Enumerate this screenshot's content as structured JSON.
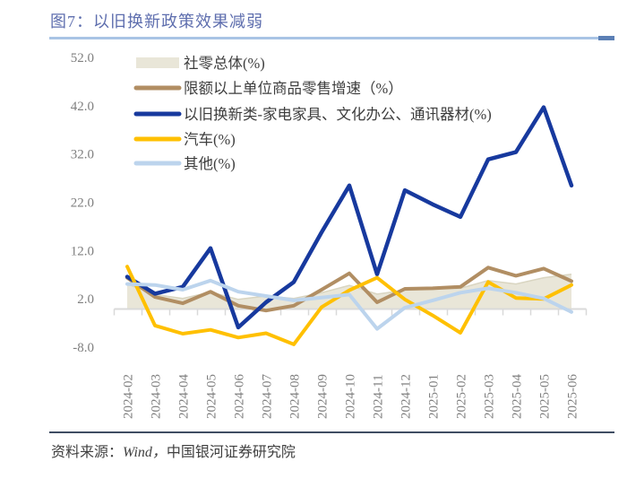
{
  "header": {
    "title": "图7：以旧换新政策效果减弱"
  },
  "footer": {
    "prefix": "资料来源：",
    "source": "Wind，",
    "org": "中国银河证券研究院"
  },
  "colors": {
    "title_blue": "#5e6eae",
    "rule_light_blue": "#a9c4e5",
    "rule_dark_blue": "#5b7fb5",
    "axis_gray": "#d9d9d9",
    "tick_label_gray": "#7f7f7f",
    "legend_text": "#3d3d3d",
    "footer_text": "#404040"
  },
  "chart_data": {
    "type": "area",
    "title": "",
    "xlabel": "",
    "ylabel": "",
    "grid": false,
    "legend_position": "top-left",
    "ylim": [
      -8,
      52
    ],
    "y_ticks": [
      52,
      42,
      32,
      22,
      12,
      2,
      -8
    ],
    "y_tick_labels": [
      "52.0",
      "42.0",
      "32.0",
      "22.0",
      "12.0",
      "2.0",
      "-8.0"
    ],
    "categories": [
      "2024-02",
      "2024-03",
      "2024-04",
      "2024-05",
      "2024-06",
      "2024-07",
      "2024-08",
      "2024-09",
      "2024-10",
      "2024-11",
      "2024-12",
      "2025-01",
      "2025-02",
      "2025-03",
      "2025-04",
      "2025-05",
      "2025-06"
    ],
    "series": [
      {
        "name": "社零总体(%)",
        "type": "area",
        "color": "#e9e6d8",
        "edge_color": "#d9d5c1",
        "values": [
          5.0,
          2.8,
          2.0,
          3.3,
          1.8,
          2.5,
          2.0,
          3.2,
          4.7,
          2.9,
          3.7,
          4.0,
          4.1,
          5.7,
          5.0,
          6.3,
          7.0
        ]
      },
      {
        "name": "限额以上单位商品零售增速（%）",
        "type": "line",
        "color": "#b18e63",
        "values": [
          6.3,
          2.3,
          1.0,
          3.4,
          0.5,
          -0.5,
          0.5,
          3.8,
          7.2,
          1.2,
          4.0,
          4.1,
          4.4,
          8.4,
          6.7,
          8.2,
          5.6
        ]
      },
      {
        "name": "以旧换新类-家电家具、文化办公、通讯器材(%)",
        "type": "line",
        "color": "#17399e",
        "values": [
          6.5,
          3.0,
          4.4,
          12.4,
          -4.0,
          1.2,
          5.4,
          15.7,
          25.4,
          7.0,
          24.4,
          21.5,
          18.9,
          30.8,
          32.3,
          41.6,
          25.4
        ]
      },
      {
        "name": "汽车(%)",
        "type": "line",
        "color": "#ffc000",
        "values": [
          8.6,
          -3.6,
          -5.3,
          -4.5,
          -6.1,
          -5.2,
          -7.5,
          0.2,
          3.7,
          6.3,
          1.8,
          -1.5,
          -5.1,
          5.4,
          2.1,
          1.9,
          4.8
        ]
      },
      {
        "name": "其他(%)",
        "type": "line",
        "color": "#bcd4ed",
        "values": [
          5.0,
          4.8,
          3.8,
          5.7,
          3.4,
          2.5,
          1.6,
          2.2,
          2.8,
          -4.3,
          0.1,
          1.6,
          3.2,
          4.1,
          3.2,
          2.0,
          -0.8
        ]
      }
    ]
  }
}
